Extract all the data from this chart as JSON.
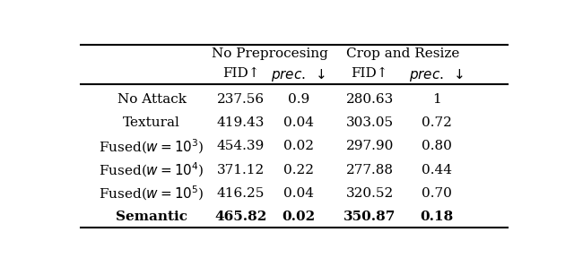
{
  "col_group_headers": [
    "No Preprocesing",
    "Crop and Resize"
  ],
  "col_subheaders": [
    "FID↑",
    "prec.↓",
    "FID↑",
    "prec.↓"
  ],
  "row_labels": [
    "No Attack",
    "Textural",
    "Fused($w = 10^3$)",
    "Fused($w = 10^4$)",
    "Fused($w = 10^5$)",
    "Semantic"
  ],
  "data": [
    [
      "237.56",
      "0.9",
      "280.63",
      "1"
    ],
    [
      "419.43",
      "0.04",
      "303.05",
      "0.72"
    ],
    [
      "454.39",
      "0.02",
      "297.90",
      "0.80"
    ],
    [
      "371.12",
      "0.22",
      "277.88",
      "0.44"
    ],
    [
      "416.25",
      "0.04",
      "320.52",
      "0.70"
    ],
    [
      "465.82",
      "0.02",
      "350.87",
      "0.18"
    ]
  ],
  "bold_rows": [
    5
  ],
  "bg_color": "#ffffff",
  "font_size": 11,
  "header_font_size": 11
}
